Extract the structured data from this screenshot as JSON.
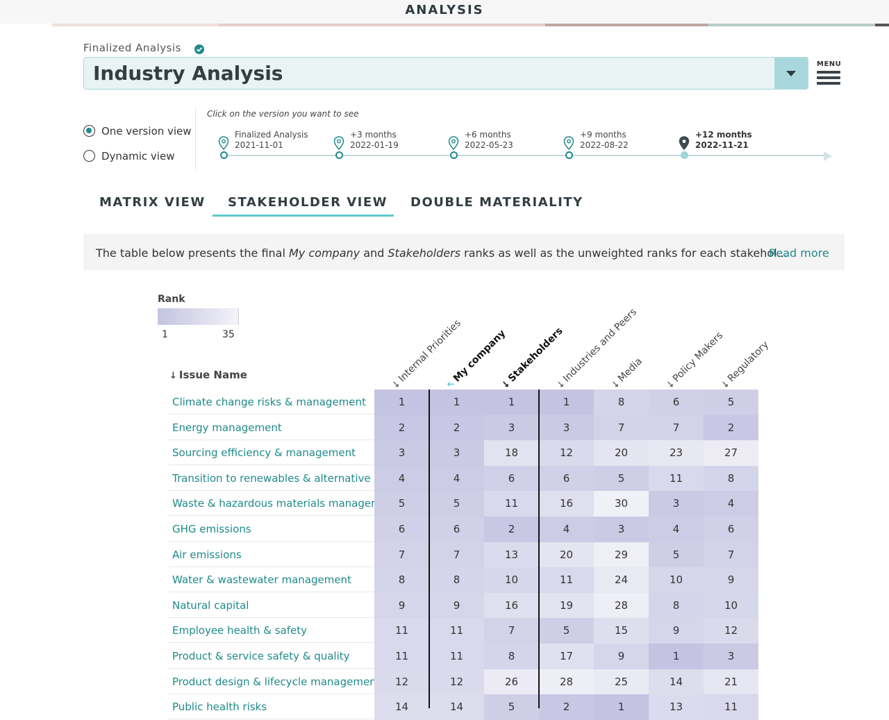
{
  "header": {
    "title": "ANALYSIS"
  },
  "analysis": {
    "status_label": "Finalized Analysis",
    "selected": "Industry Analysis",
    "menu_label": "MENU"
  },
  "view_mode": {
    "options": [
      {
        "label": "One version view",
        "selected": true
      },
      {
        "label": "Dynamic view",
        "selected": false
      }
    ]
  },
  "timeline": {
    "hint": "Click on the version you want to see",
    "versions": [
      {
        "label": "Finalized Analysis",
        "date": "2021-11-01",
        "active": false
      },
      {
        "label": "+3 months",
        "date": "2022-01-19",
        "active": false
      },
      {
        "label": "+6 months",
        "date": "2022-05-23",
        "active": false
      },
      {
        "label": "+9 months",
        "date": "2022-08-22",
        "active": false
      },
      {
        "label": "+12 months",
        "date": "2022-11-21",
        "active": true
      }
    ]
  },
  "tabs": [
    {
      "label": "MATRIX VIEW",
      "active": false
    },
    {
      "label": "STAKEHOLDER VIEW",
      "active": true
    },
    {
      "label": "DOUBLE MATERIALITY",
      "active": false
    }
  ],
  "info": {
    "text_1": "The table below presents the final ",
    "text_company": "My company",
    "text_2": " and ",
    "text_stakeholders": "Stakeholders",
    "text_3": " ranks as well as the unweighted ranks for each stakehol...",
    "read_more": "Read more"
  },
  "legend": {
    "title": "Rank",
    "min": "1",
    "max": "35"
  },
  "table": {
    "issue_header": "Issue Name",
    "sort_icon": "↓",
    "columns": [
      "Internal Priorities",
      "My company",
      "Stakeholders",
      "Industries and Peers",
      "Media",
      "Policy Makers",
      "Regulatory"
    ],
    "rows": [
      {
        "name": "Climate change risks & management",
        "values": [
          1,
          1,
          1,
          1,
          8,
          6,
          5
        ]
      },
      {
        "name": "Energy management",
        "values": [
          2,
          2,
          3,
          3,
          7,
          7,
          2
        ]
      },
      {
        "name": "Sourcing efficiency & management",
        "values": [
          3,
          3,
          18,
          12,
          20,
          23,
          27
        ]
      },
      {
        "name": "Transition to renewables & alternative e...",
        "values": [
          4,
          4,
          6,
          6,
          5,
          11,
          8
        ]
      },
      {
        "name": "Waste & hazardous materials managem...",
        "values": [
          5,
          5,
          11,
          16,
          30,
          3,
          4
        ]
      },
      {
        "name": "GHG emissions",
        "values": [
          6,
          6,
          2,
          4,
          3,
          4,
          6
        ]
      },
      {
        "name": "Air emissions",
        "values": [
          7,
          7,
          13,
          20,
          29,
          5,
          7
        ]
      },
      {
        "name": "Water & wastewater management",
        "values": [
          8,
          8,
          10,
          11,
          24,
          10,
          9
        ]
      },
      {
        "name": "Natural capital",
        "values": [
          9,
          9,
          16,
          19,
          28,
          8,
          10
        ]
      },
      {
        "name": "Employee health & safety",
        "values": [
          11,
          11,
          7,
          5,
          15,
          9,
          12
        ]
      },
      {
        "name": "Product & service safety & quality",
        "values": [
          11,
          11,
          8,
          17,
          9,
          1,
          3
        ]
      },
      {
        "name": "Product design & lifecycle management",
        "values": [
          12,
          12,
          26,
          28,
          25,
          14,
          21
        ]
      },
      {
        "name": "Public health risks",
        "values": [
          14,
          14,
          5,
          2,
          1,
          13,
          11
        ]
      }
    ]
  },
  "colors": {
    "accent": "#1f8a8a",
    "tab_underline": "#5cc9cf",
    "rank_high": "#c4c3e2",
    "rank_low": "#f5f5f9"
  }
}
